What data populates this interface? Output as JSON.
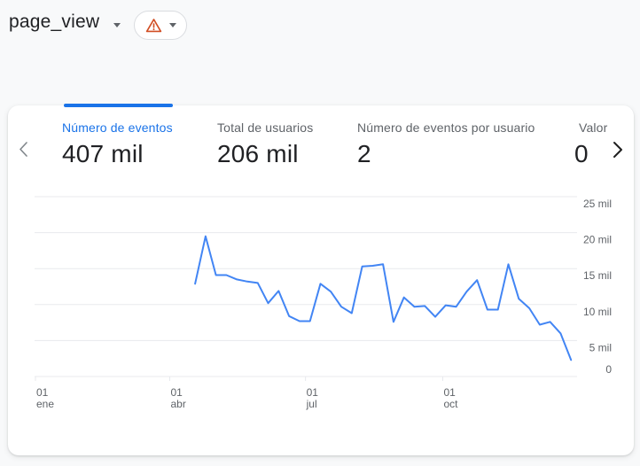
{
  "header": {
    "event_name": "page_view"
  },
  "metrics": [
    {
      "label": "Número de eventos",
      "value": "407 mil",
      "selected": true
    },
    {
      "label": "Total de usuarios",
      "value": "206 mil",
      "selected": false
    },
    {
      "label": "Número de eventos por usuario",
      "value": "2",
      "selected": false
    },
    {
      "label": "Valor",
      "value": "0",
      "selected": false,
      "truncated": true
    }
  ],
  "colors": {
    "accent": "#1a73e8",
    "line": "#4285f4",
    "warning": "#d14e24",
    "grid": "#e8eaed",
    "axis_label": "#5f6368",
    "card_bg": "#ffffff",
    "page_bg": "#f8f9fa"
  },
  "chart_data": {
    "type": "line",
    "title": "",
    "xlabel": "",
    "ylabel": "",
    "grid": true,
    "legend": false,
    "x_axis": {
      "unit": "day_of_year",
      "range": [
        0,
        365
      ],
      "ticks": [
        {
          "day": 0,
          "line1": "01",
          "line2": "ene"
        },
        {
          "day": 90,
          "line1": "01",
          "line2": "abr"
        },
        {
          "day": 181,
          "line1": "01",
          "line2": "jul"
        },
        {
          "day": 273,
          "line1": "01",
          "line2": "oct"
        }
      ]
    },
    "y_axis": {
      "range": [
        0,
        26500
      ],
      "ticks": [
        {
          "value": 25000,
          "label": "25 mil"
        },
        {
          "value": 20000,
          "label": "20 mil"
        },
        {
          "value": 15000,
          "label": "15 mil"
        },
        {
          "value": 10000,
          "label": "10 mil"
        },
        {
          "value": 5000,
          "label": "5 mil"
        },
        {
          "value": 0,
          "label": "0"
        }
      ]
    },
    "series": [
      {
        "name": "Número de eventos",
        "interval": "weekly",
        "x_day_of_year": [
          107,
          114,
          121,
          128,
          135,
          142,
          149,
          156,
          163,
          170,
          177,
          184,
          191,
          198,
          205,
          212,
          219,
          226,
          233,
          240,
          247,
          254,
          261,
          268,
          275,
          282,
          289,
          296,
          303,
          310,
          317,
          324,
          331,
          338,
          345,
          352,
          359
        ],
        "values": [
          12900,
          19500,
          14100,
          14100,
          13500,
          13200,
          13000,
          10200,
          11900,
          8400,
          7700,
          7700,
          12900,
          11800,
          9700,
          8800,
          15300,
          15400,
          15600,
          7600,
          11000,
          9700,
          9800,
          8300,
          9900,
          9700,
          11800,
          13400,
          9300,
          9300,
          15600,
          10800,
          9500,
          7200,
          7600,
          6000,
          2300
        ]
      }
    ]
  }
}
